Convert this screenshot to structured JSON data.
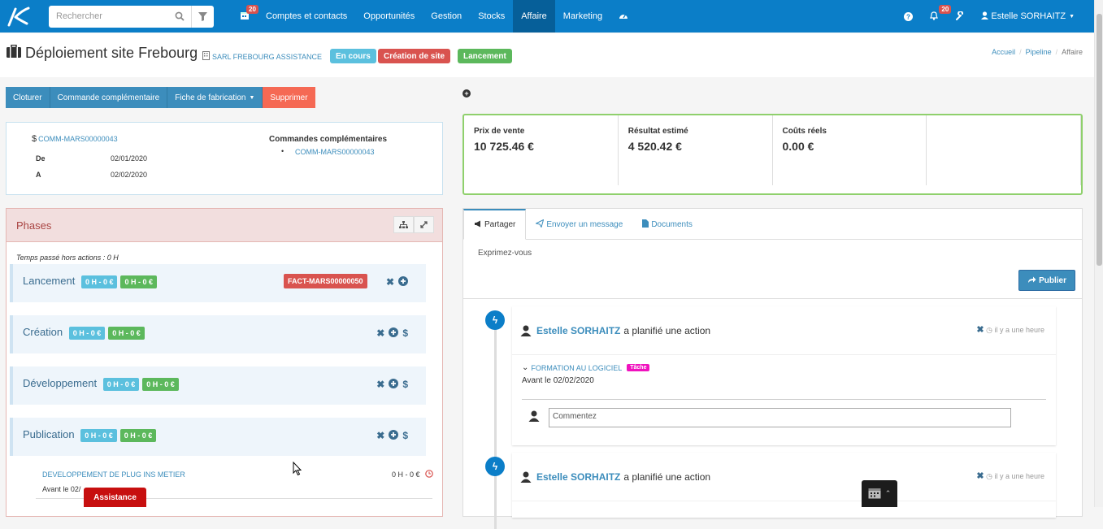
{
  "nav": {
    "search_placeholder": "Rechercher",
    "calendar_badge": "20",
    "items": [
      "Comptes et contacts",
      "Opportunités",
      "Gestion",
      "Stocks",
      "Affaire",
      "Marketing"
    ],
    "notif_badge": "20",
    "user": "Estelle SORHAITZ"
  },
  "header": {
    "title": "Déploiement site Frebourg",
    "company": "SARL FREBOURG ASSISTANCE",
    "labels": [
      {
        "text": "En cours",
        "color": "#5bc0de"
      },
      {
        "text": "Création de site",
        "color": "#d9534f"
      },
      {
        "text": "Lancement",
        "color": "#5cb85c"
      }
    ],
    "breadcrumb": [
      "Accueil",
      "Pipeline",
      "Affaire"
    ]
  },
  "actions": {
    "cloturer": "Cloturer",
    "commande": "Commande complémentaire",
    "fiche": "Fiche de fabrication",
    "supprimer": "Supprimer"
  },
  "info": {
    "order": "COMM-MARS00000043",
    "de_label": "De",
    "de_value": "02/01/2020",
    "a_label": "A",
    "a_value": "02/02/2020",
    "compl_title": "Commandes complémentaires",
    "compl_item": "COMM-MARS00000043"
  },
  "stats": [
    {
      "label": "Prix de vente",
      "value": "10 725.46 €"
    },
    {
      "label": "Résultat estimé",
      "value": "4 520.42 €"
    },
    {
      "label": "Coûts réels",
      "value": "0.00 €"
    }
  ],
  "phases": {
    "title": "Phases",
    "temps": "Temps passé hors actions : 0 H",
    "items": [
      {
        "name": "Lancement",
        "h1": "0 H - 0 €",
        "h2": "0 H - 0 €",
        "fact": "FACT-MARS00000050"
      },
      {
        "name": "Création",
        "h1": "0 H - 0 €",
        "h2": "0 H - 0 €"
      },
      {
        "name": "Développement",
        "h1": "0 H - 0 €",
        "h2": "0 H - 0 €"
      },
      {
        "name": "Publication",
        "h1": "0 H - 0 €",
        "h2": "0 H - 0 €"
      }
    ],
    "sub_title": "DEVELOPPEMENT DE PLUG INS METIER",
    "sub_before": "Avant le 02/",
    "sub_hours": "0 H - 0 €"
  },
  "feed": {
    "tabs": [
      "Partager",
      "Envoyer un message",
      "Documents"
    ],
    "prompt": "Exprimez-vous",
    "publish": "Publier",
    "entries": [
      {
        "author": "Estelle SORHAITZ",
        "text": "a planifié une action",
        "ago": "il y a une heure",
        "task": "FORMATION AU LOGICIEL",
        "tag": "Tâche",
        "before": "Avant le 02/02/2020",
        "comment_ph": "Commentez"
      },
      {
        "author": "Estelle SORHAITZ",
        "text": "a planifié une action",
        "ago": "il y a une heure"
      }
    ]
  },
  "assistance": "Assistance"
}
